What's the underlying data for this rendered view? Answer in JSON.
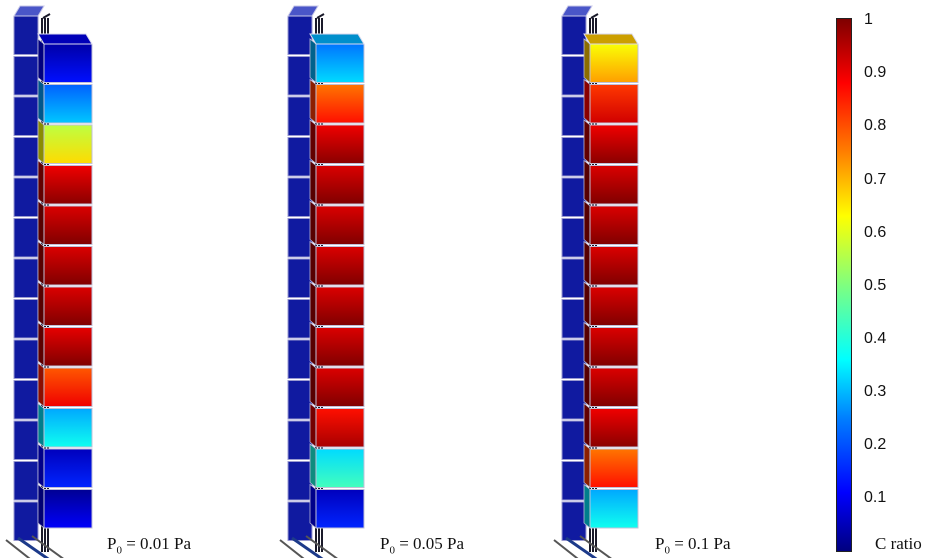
{
  "panels": [
    {
      "caption_main": "P",
      "caption_sub": "0",
      "caption_rest": " = 0.01 Pa",
      "front_values": [
        0.1,
        0.28,
        0.62,
        0.95,
        0.97,
        0.97,
        0.97,
        0.96,
        0.85,
        0.35,
        0.12,
        0.08
      ]
    },
    {
      "caption_main": "P",
      "caption_sub": "0",
      "caption_rest": " = 0.05 Pa",
      "front_values": [
        0.3,
        0.82,
        0.95,
        0.97,
        0.97,
        0.97,
        0.97,
        0.97,
        0.97,
        0.92,
        0.4,
        0.12
      ]
    },
    {
      "caption_main": "P",
      "caption_sub": "0",
      "caption_rest": " = 0.1 Pa",
      "front_values": [
        0.68,
        0.88,
        0.95,
        0.97,
        0.97,
        0.97,
        0.97,
        0.97,
        0.97,
        0.95,
        0.82,
        0.35
      ]
    }
  ],
  "colorbar": {
    "ticks": [
      "1",
      "0.9",
      "0.8",
      "0.7",
      "0.6",
      "0.5",
      "0.4",
      "0.3",
      "0.2",
      "0.1"
    ],
    "label": "C ratio",
    "min": 0,
    "max": 1
  }
}
